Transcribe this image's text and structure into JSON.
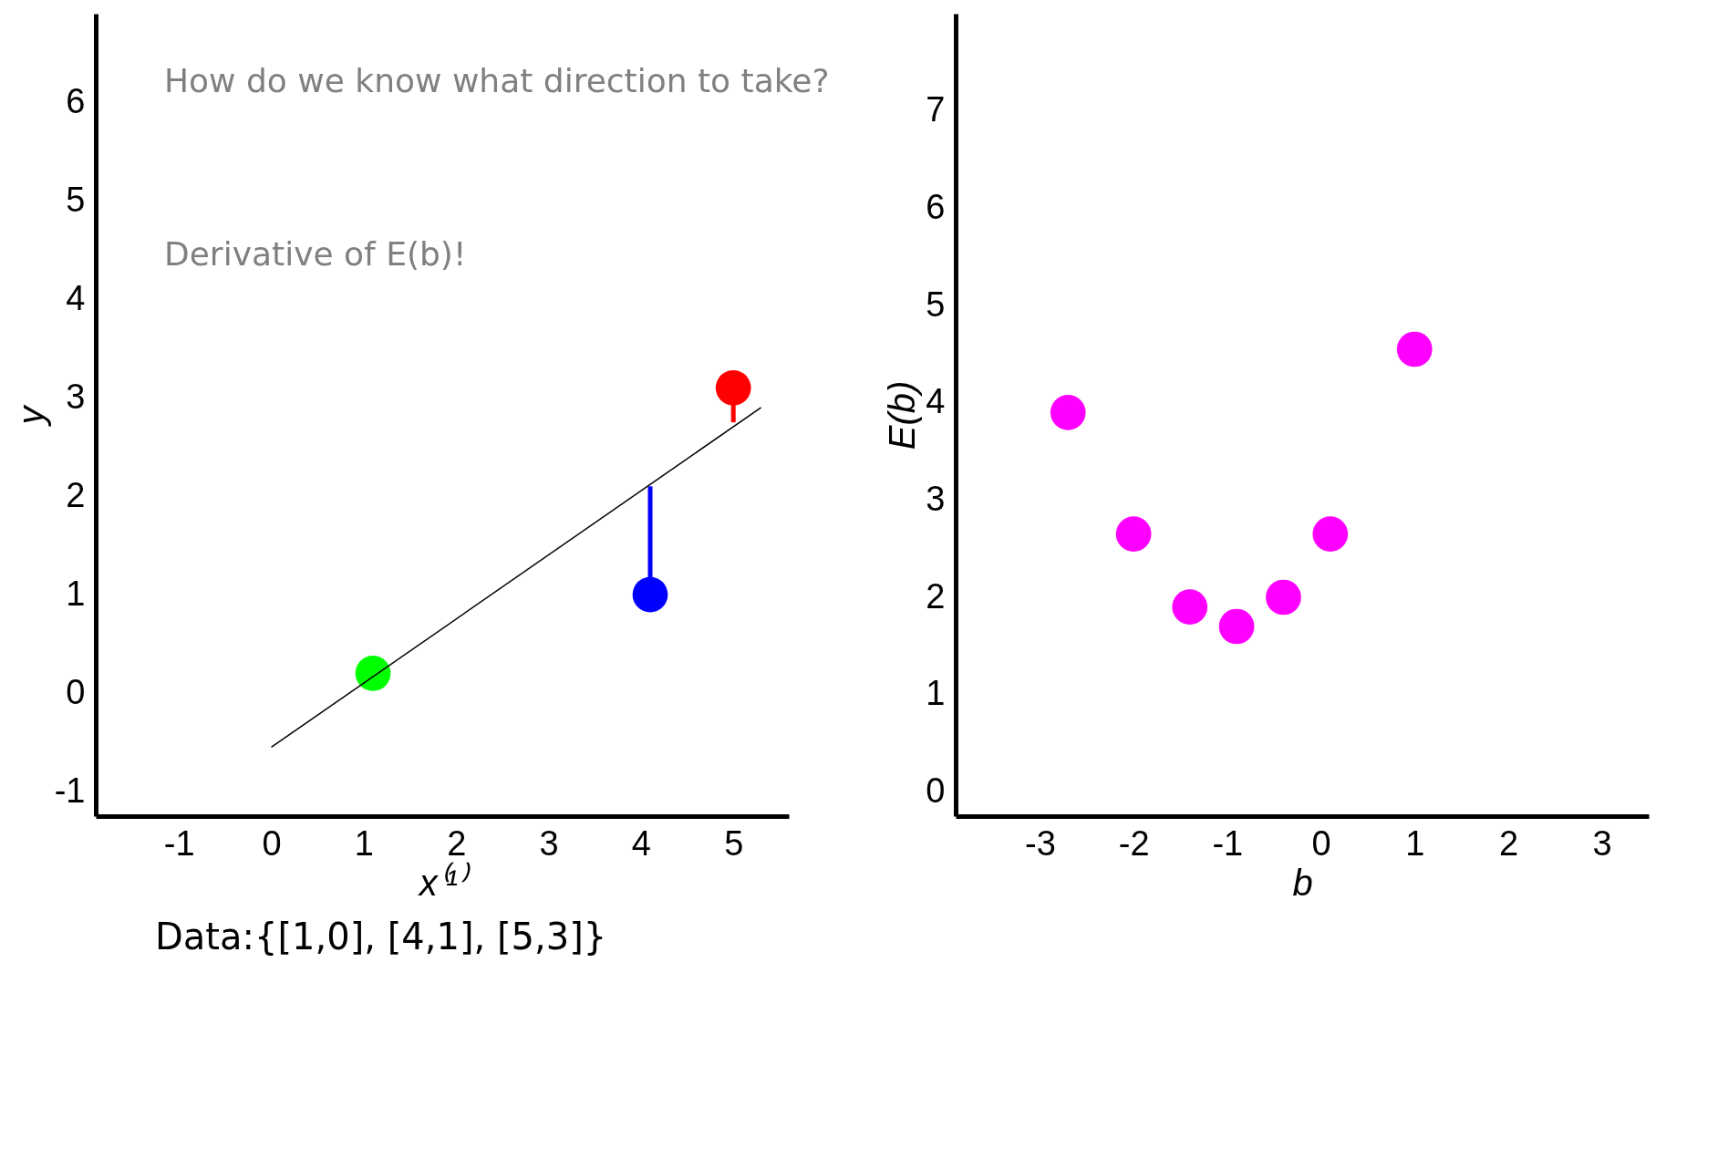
{
  "chart_data": [
    {
      "type": "scatter",
      "xlabel": "x⁽¹⁾",
      "ylabel": "y",
      "xlim": [
        -1.9,
        5.6
      ],
      "ylim": [
        -1.25,
        6.9
      ],
      "xticks": [
        -1,
        0,
        1,
        2,
        3,
        4,
        5
      ],
      "yticks": [
        -1,
        0,
        1,
        2,
        3,
        4,
        5,
        6
      ],
      "grid": false,
      "annotations": [
        "How do we know what direction to take?",
        "Derivative of E(b)!",
        "Data:{[1,0], [4,1], [5,3]}"
      ],
      "series": [
        {
          "x": [
            1.1,
            4.1,
            5.0
          ],
          "values": [
            0.2,
            1.0,
            3.1
          ],
          "colors": [
            "#00ff00",
            "#0000ff",
            "#ff0000"
          ],
          "errors": [
            null,
            [
              1.0,
              2.1
            ],
            [
              2.75,
              3.1
            ]
          ],
          "marker": "circle"
        },
        {
          "type": "line",
          "x": [
            0,
            5.3
          ],
          "values": [
            -0.55,
            2.9
          ],
          "color": "#000000",
          "marker": "none"
        }
      ]
    },
    {
      "type": "scatter",
      "xlabel": "b",
      "ylabel": "E(b)",
      "xlim": [
        -3.9,
        3.5
      ],
      "ylim": [
        -0.25,
        8.0
      ],
      "xticks": [
        -3,
        -2,
        -1,
        0,
        1,
        2,
        3
      ],
      "yticks": [
        0,
        1,
        2,
        3,
        4,
        5,
        6,
        7
      ],
      "grid": false,
      "marker": "circle",
      "series": [
        {
          "x": [
            -2.7,
            -2.0,
            -1.4,
            -0.9,
            -0.4,
            0.1,
            1.0
          ],
          "values": [
            3.9,
            2.65,
            1.9,
            1.7,
            2.0,
            2.65,
            4.55
          ],
          "color": "#ff00ff"
        }
      ]
    }
  ]
}
